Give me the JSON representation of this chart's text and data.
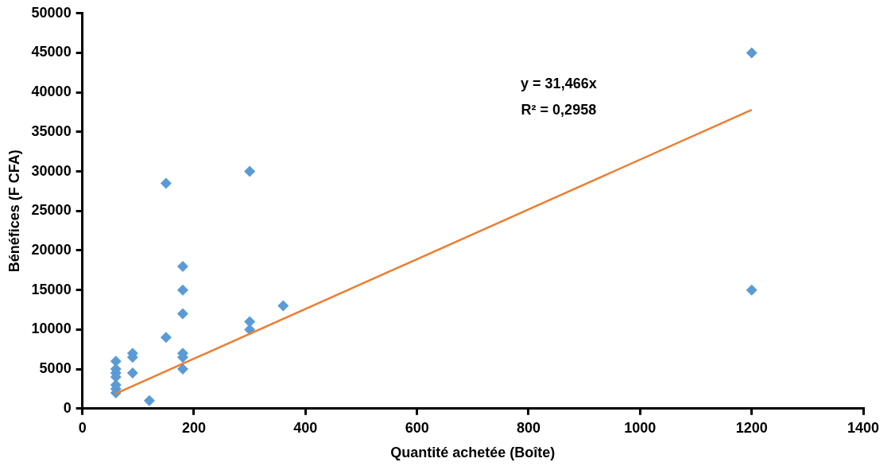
{
  "chart_data": {
    "type": "scatter",
    "xlabel": "Quantité achetée (Boîte)",
    "ylabel": "Bénéfices (F CFA)",
    "marker": "diamond",
    "grid": false,
    "legend": false,
    "xlim": [
      0,
      1400
    ],
    "xticks": [
      0,
      200,
      400,
      600,
      800,
      1000,
      1200,
      1400
    ],
    "ylim": [
      0,
      50000
    ],
    "yticks": [
      0,
      5000,
      10000,
      15000,
      20000,
      25000,
      30000,
      35000,
      40000,
      45000,
      50000
    ],
    "annotations": [
      "y = 31,466x",
      "R² = 0,2958"
    ],
    "series": [
      {
        "color": "#5b9bd5",
        "x": [
          60,
          60,
          60,
          60,
          60,
          60,
          60,
          90,
          90,
          90,
          120,
          150,
          150,
          180,
          180,
          180,
          180,
          180,
          180,
          300,
          300,
          300,
          360,
          1200,
          1200
        ],
        "values": [
          2000,
          2500,
          3000,
          4000,
          4500,
          5000,
          6000,
          4500,
          6500,
          7000,
          1000,
          9000,
          28500,
          5000,
          6500,
          7000,
          12000,
          15000,
          18000,
          10000,
          11000,
          30000,
          13000,
          45000,
          15000
        ]
      },
      {
        "type": "line",
        "color": "#ed7d31",
        "marker": "none",
        "x": [
          60,
          1200
        ],
        "values": [
          1900,
          37800
        ]
      }
    ]
  }
}
